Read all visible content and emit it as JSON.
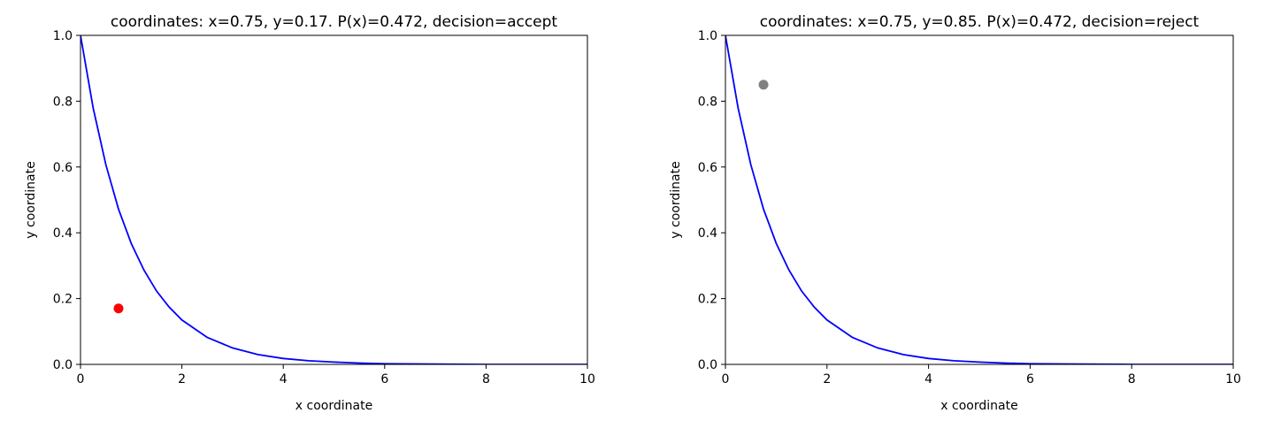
{
  "chart_data": [
    {
      "type": "line",
      "title": "coordinates: x=0.75, y=0.17. P(x)=0.472, decision=accept",
      "xlabel": "x coordinate",
      "ylabel": "y coordinate",
      "xlim": [
        0,
        10
      ],
      "ylim": [
        0,
        1
      ],
      "xticks": [
        0,
        2,
        4,
        6,
        8,
        10
      ],
      "yticks": [
        0,
        0.2,
        0.4,
        0.6,
        0.8,
        1
      ],
      "xtick_labels": [
        "0",
        "2",
        "4",
        "6",
        "8",
        "10"
      ],
      "ytick_labels": [
        "0.0",
        "0.2",
        "0.4",
        "0.6",
        "0.8",
        "1.0"
      ],
      "grid": false,
      "curve": {
        "color": "#0000ff",
        "x": [
          0,
          0.25,
          0.5,
          0.75,
          1,
          1.25,
          1.5,
          1.75,
          2,
          2.5,
          3,
          3.5,
          4,
          4.5,
          5,
          5.5,
          6,
          7,
          8,
          9,
          10
        ],
        "y": [
          1,
          0.779,
          0.607,
          0.472,
          0.368,
          0.287,
          0.223,
          0.174,
          0.135,
          0.082,
          0.05,
          0.03,
          0.018,
          0.011,
          0.007,
          0.004,
          0.002,
          0.001,
          0,
          0,
          0
        ]
      },
      "point": {
        "x": 0.75,
        "y": 0.17,
        "color": "#ff0000"
      }
    },
    {
      "type": "line",
      "title": "coordinates: x=0.75, y=0.85. P(x)=0.472, decision=reject",
      "xlabel": "x coordinate",
      "ylabel": "y coordinate",
      "xlim": [
        0,
        10
      ],
      "ylim": [
        0,
        1
      ],
      "xticks": [
        0,
        2,
        4,
        6,
        8,
        10
      ],
      "yticks": [
        0,
        0.2,
        0.4,
        0.6,
        0.8,
        1
      ],
      "xtick_labels": [
        "0",
        "2",
        "4",
        "6",
        "8",
        "10"
      ],
      "ytick_labels": [
        "0.0",
        "0.2",
        "0.4",
        "0.6",
        "0.8",
        "1.0"
      ],
      "grid": false,
      "curve": {
        "color": "#0000ff",
        "x": [
          0,
          0.25,
          0.5,
          0.75,
          1,
          1.25,
          1.5,
          1.75,
          2,
          2.5,
          3,
          3.5,
          4,
          4.5,
          5,
          5.5,
          6,
          7,
          8,
          9,
          10
        ],
        "y": [
          1,
          0.779,
          0.607,
          0.472,
          0.368,
          0.287,
          0.223,
          0.174,
          0.135,
          0.082,
          0.05,
          0.03,
          0.018,
          0.011,
          0.007,
          0.004,
          0.002,
          0.001,
          0,
          0,
          0
        ]
      },
      "point": {
        "x": 0.75,
        "y": 0.85,
        "color": "#808080"
      }
    }
  ]
}
